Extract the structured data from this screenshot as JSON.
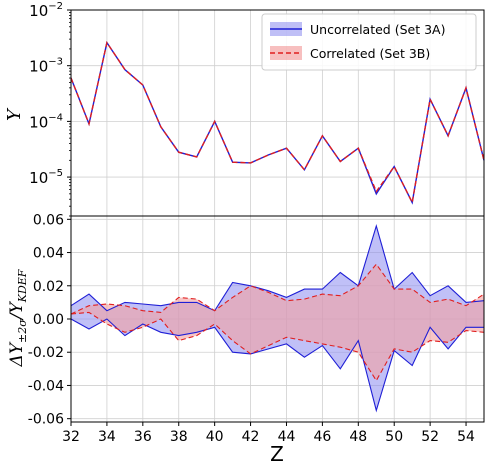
{
  "chart_data": [
    {
      "type": "line",
      "ylabel": "Y",
      "yscale": "log",
      "ylim": [
        2e-06,
        0.01
      ],
      "xlim": [
        32,
        55
      ],
      "grid": true,
      "legend": "top-right",
      "yticks": [
        {
          "value": 1e-05,
          "base": "10",
          "exp": "−5"
        },
        {
          "value": 0.0001,
          "base": "10",
          "exp": "−4"
        },
        {
          "value": 0.001,
          "base": "10",
          "exp": "−3"
        },
        {
          "value": 0.01,
          "base": "10",
          "exp": "−2"
        }
      ],
      "x": [
        32,
        33,
        34,
        35,
        36,
        37,
        38,
        39,
        40,
        41,
        42,
        43,
        44,
        45,
        46,
        47,
        48,
        49,
        50,
        51,
        52,
        53,
        54,
        55
      ],
      "series": [
        {
          "name": "Uncorrelated (Set 3A)",
          "color": "#1f1fd6",
          "style": "solid",
          "band_color": "#8080ee",
          "values": [
            0.0006,
            9e-05,
            0.0026,
            0.00085,
            0.00045,
            8e-05,
            2.8e-05,
            2.3e-05,
            0.0001,
            1.85e-05,
            1.8e-05,
            2.5e-05,
            3.3e-05,
            1.35e-05,
            5.5e-05,
            1.9e-05,
            3.3e-05,
            5e-06,
            1.55e-05,
            3.5e-06,
            0.00025,
            5.5e-05,
            0.0004,
            2e-05
          ]
        },
        {
          "name": "Correlated (Set 3B)",
          "color": "#e01f1f",
          "style": "dashed",
          "band_color": "#f08080",
          "values": [
            0.0006,
            9e-05,
            0.0026,
            0.00085,
            0.00045,
            8e-05,
            2.8e-05,
            2.3e-05,
            0.0001,
            1.85e-05,
            1.8e-05,
            2.5e-05,
            3.3e-05,
            1.35e-05,
            5.5e-05,
            1.9e-05,
            3.3e-05,
            5.5e-06,
            1.55e-05,
            3.5e-06,
            0.00025,
            5.5e-05,
            0.0004,
            2e-05
          ]
        }
      ]
    },
    {
      "type": "area",
      "ylabel": "ΔY±2σ/YKDEF",
      "ylabel_main": "ΔY",
      "ylabel_sub": "±2σ",
      "ylabel_rest": "/Y",
      "ylabel_sub2": "KDEF",
      "xlabel": "Z",
      "xlim": [
        32,
        55
      ],
      "ylim": [
        -0.062,
        0.062
      ],
      "grid": true,
      "yticks": [
        "-0.06",
        "-0.04",
        "-0.02",
        "0.00",
        "0.02",
        "0.04",
        "0.06"
      ],
      "xticks": [
        "32",
        "34",
        "36",
        "38",
        "40",
        "42",
        "44",
        "46",
        "48",
        "50",
        "52",
        "54"
      ],
      "x": [
        32,
        33,
        34,
        35,
        36,
        37,
        38,
        39,
        40,
        41,
        42,
        43,
        44,
        45,
        46,
        47,
        48,
        49,
        50,
        51,
        52,
        53,
        54,
        55
      ],
      "series": [
        {
          "name": "Uncorrelated (Set 3A)",
          "color": "#1f1fd6",
          "style": "solid",
          "fill": "#8c8cf0",
          "upper": [
            0.008,
            0.015,
            0.005,
            0.01,
            0.009,
            0.008,
            0.01,
            0.01,
            0.005,
            0.022,
            0.02,
            0.017,
            0.013,
            0.018,
            0.018,
            0.028,
            0.02,
            0.056,
            0.018,
            0.028,
            0.014,
            0.02,
            0.01,
            0.011
          ],
          "lower": [
            0.0,
            -0.006,
            0.0,
            -0.01,
            -0.003,
            -0.008,
            -0.01,
            -0.008,
            -0.005,
            -0.02,
            -0.021,
            -0.018,
            -0.015,
            -0.023,
            -0.016,
            -0.03,
            -0.013,
            -0.055,
            -0.019,
            -0.028,
            -0.005,
            -0.018,
            -0.005,
            -0.005
          ]
        },
        {
          "name": "Correlated (Set 3B)",
          "color": "#e01f1f",
          "style": "dashed",
          "fill": "#f4a0a0",
          "upper": [
            0.003,
            0.008,
            0.009,
            0.008,
            0.005,
            0.004,
            0.013,
            0.012,
            0.005,
            0.013,
            0.02,
            0.016,
            0.011,
            0.012,
            0.015,
            0.014,
            0.02,
            0.033,
            0.018,
            0.018,
            0.01,
            0.012,
            0.008,
            0.015
          ],
          "lower": [
            0.003,
            0.004,
            -0.003,
            -0.008,
            -0.005,
            0.0,
            -0.013,
            -0.01,
            -0.003,
            -0.013,
            -0.021,
            -0.016,
            -0.011,
            -0.013,
            -0.015,
            -0.017,
            -0.02,
            -0.037,
            -0.018,
            -0.02,
            -0.013,
            -0.014,
            -0.007,
            -0.008
          ]
        }
      ]
    }
  ]
}
